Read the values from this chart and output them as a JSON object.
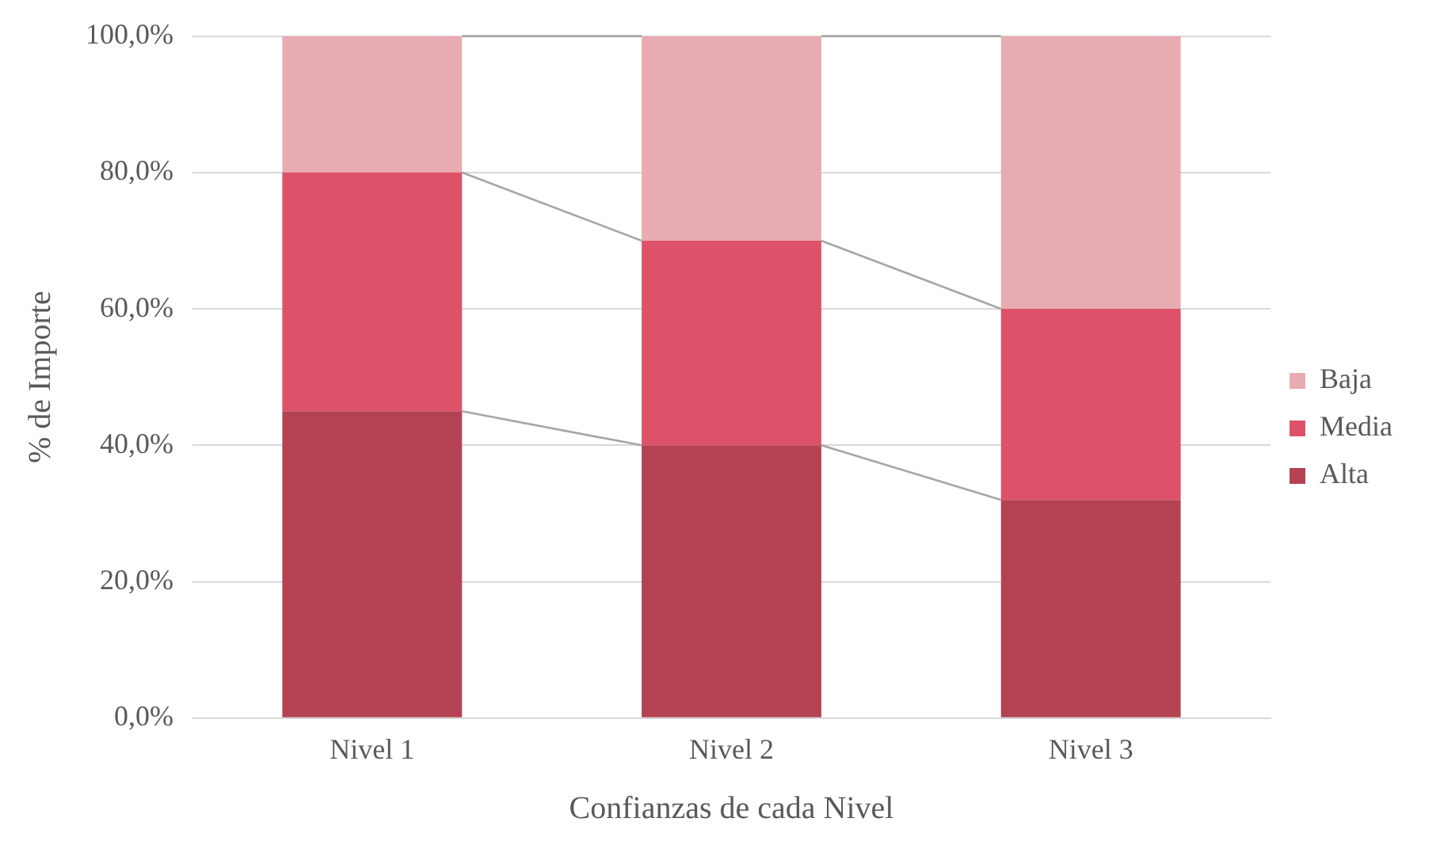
{
  "chart_data": {
    "type": "bar",
    "stacked": true,
    "xlabel": "Confianzas de cada Nivel",
    "ylabel": "% de Importe",
    "categories": [
      "Nivel 1",
      "Nivel 2",
      "Nivel 3"
    ],
    "series": [
      {
        "name": "Alta",
        "color": "#b54252",
        "values": [
          45,
          40,
          32
        ]
      },
      {
        "name": "Media",
        "color": "#dd5269",
        "values": [
          35,
          30,
          28
        ]
      },
      {
        "name": "Baja",
        "color": "#e8abb2",
        "values": [
          20,
          30,
          40
        ]
      }
    ],
    "ylim": [
      0,
      100
    ],
    "yticks": [
      {
        "value": 0,
        "label": "0,0%"
      },
      {
        "value": 20,
        "label": "20,0%"
      },
      {
        "value": 40,
        "label": "40,0%"
      },
      {
        "value": 60,
        "label": "60,0%"
      },
      {
        "value": 80,
        "label": "80,0%"
      },
      {
        "value": 100,
        "label": "100,0%"
      }
    ],
    "grid": "y",
    "legend": "right"
  }
}
